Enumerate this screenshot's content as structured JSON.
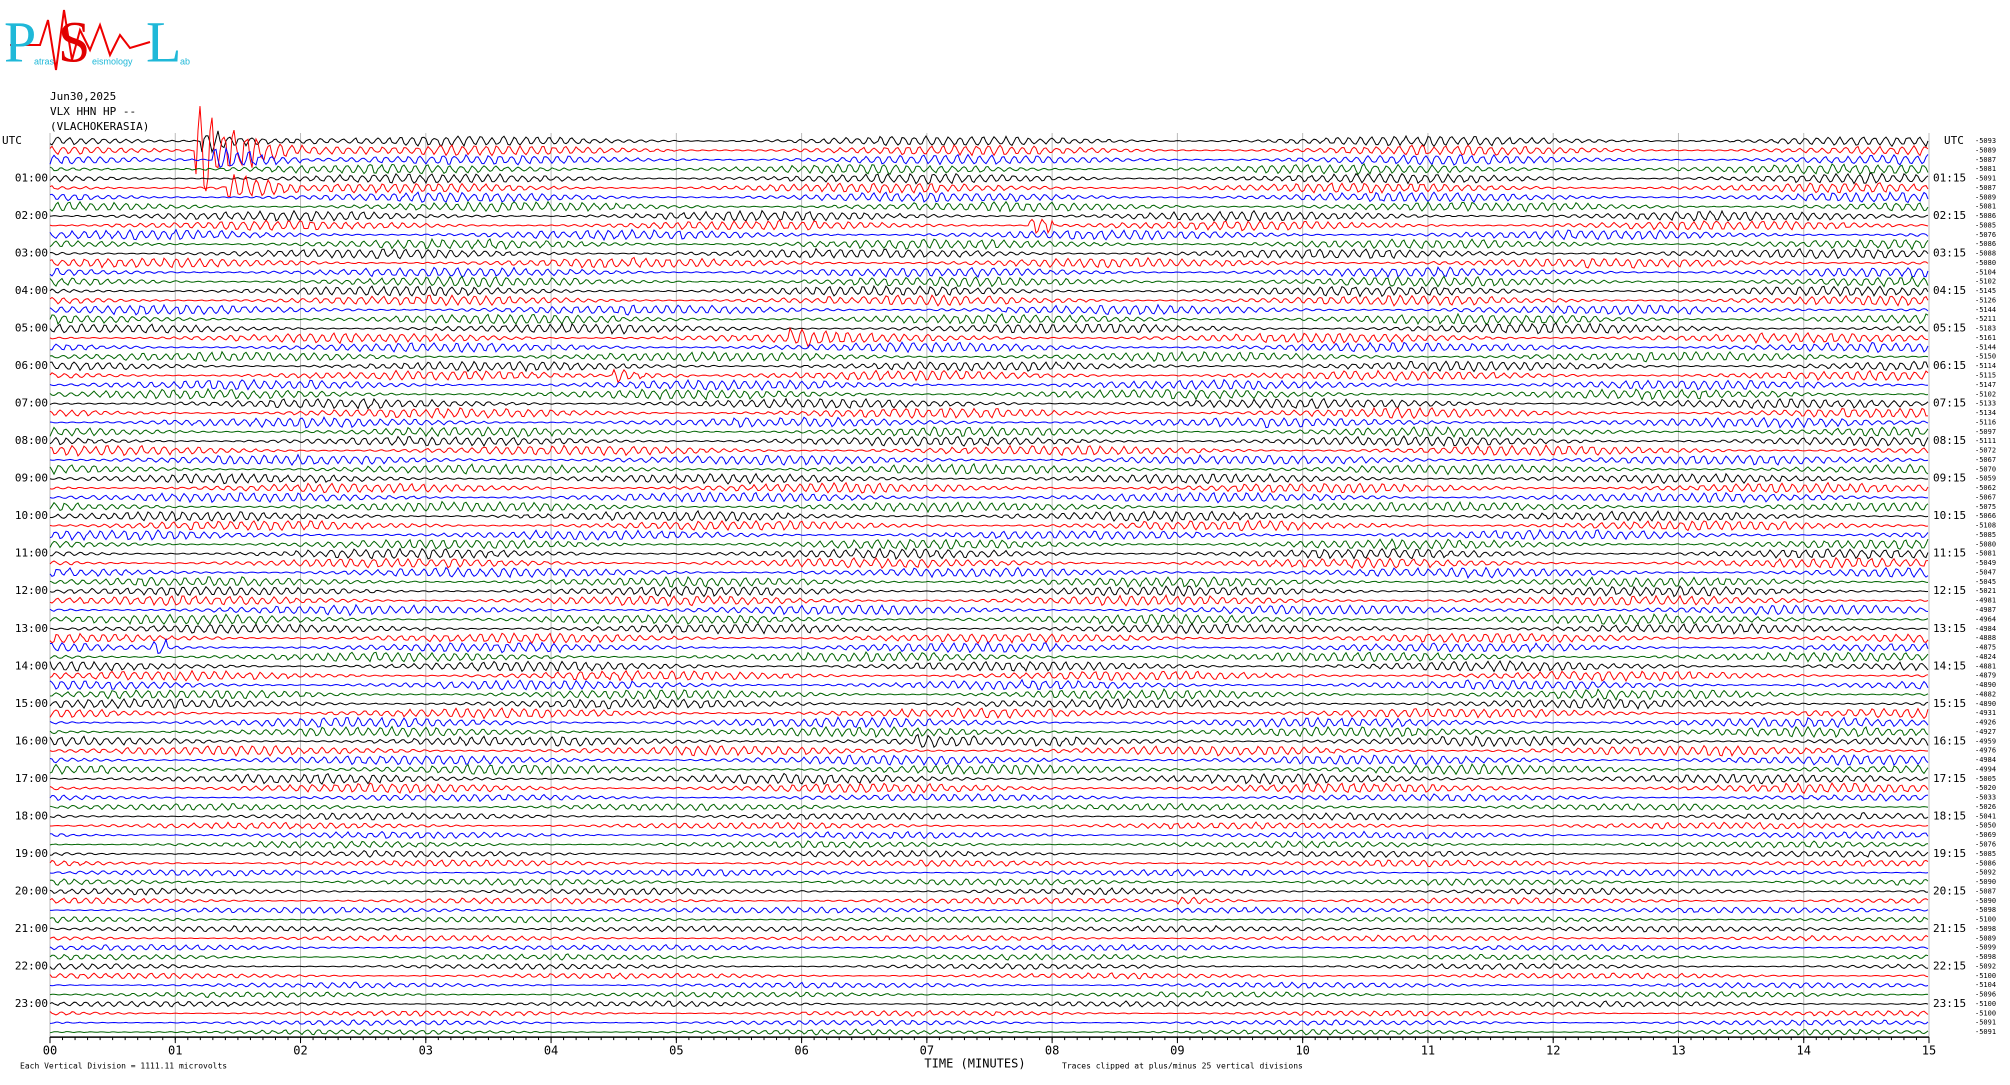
{
  "chart_data": {
    "type": "helicorder",
    "logo": {
      "letters": [
        "P",
        "S",
        "L"
      ],
      "words": [
        "atras",
        "eismology",
        "ab"
      ]
    },
    "title_lines": [
      "Jun30,2025",
      "VLX HHN HP --",
      "(VLACHOKERASIA)"
    ],
    "left_header": "UTC",
    "right_header": "UTC",
    "left_labels": [
      "01:00",
      "02:00",
      "03:00",
      "04:00",
      "05:00",
      "06:00",
      "07:00",
      "08:00",
      "09:00",
      "10:00",
      "11:00",
      "12:00",
      "13:00",
      "14:00",
      "15:00",
      "16:00",
      "17:00",
      "18:00",
      "19:00",
      "20:00",
      "21:00",
      "22:00",
      "23:00"
    ],
    "right_labels": [
      "01:15",
      "02:15",
      "03:15",
      "04:15",
      "05:15",
      "06:15",
      "07:15",
      "08:15",
      "09:15",
      "10:15",
      "11:15",
      "12:15",
      "13:15",
      "14:15",
      "15:15",
      "16:15",
      "17:15",
      "18:15",
      "19:15",
      "20:15",
      "21:15",
      "22:15",
      "23:15"
    ],
    "trace_offsets": [
      -5093,
      -5089,
      -5087,
      -5081,
      -5091,
      -5087,
      -5089,
      -5081,
      -5086,
      -5085,
      -5076,
      -5086,
      -5088,
      -5080,
      -5104,
      -5102,
      -5145,
      -5126,
      -5144,
      -5211,
      -5183,
      -5161,
      -5144,
      -5150,
      -5114,
      -5115,
      -5147,
      -5102,
      -5133,
      -5134,
      -5116,
      -5097,
      -5111,
      -5072,
      -5067,
      -5070,
      -5059,
      -5062,
      -5067,
      -5075,
      -5066,
      -5108,
      -5085,
      -5080,
      -5081,
      -5049,
      -5047,
      -5045,
      -5021,
      -4981,
      -4987,
      -4964,
      -4984,
      -4888,
      -4875,
      -4824,
      -4881,
      -4879,
      -4890,
      -4882,
      -4890,
      -4931,
      -4926,
      -4927,
      -4959,
      -4976,
      -4984,
      -4994,
      -5005,
      -5020,
      -5033,
      -5026,
      -5041,
      -5050,
      -5069,
      -5076,
      -5085,
      -5086,
      -5092,
      -5090,
      -5087,
      -5090,
      -5098,
      -5100,
      -5098,
      -5089,
      -5099,
      -5098,
      -5092,
      -5100,
      -5104,
      -5096,
      -5100,
      -5100,
      -5091,
      -5091
    ],
    "trace_colors": [
      "#000000",
      "#ff0000",
      "#0000ff",
      "#006400"
    ],
    "xlim": [
      0,
      15
    ],
    "xticks": [
      {
        "value": 0,
        "label": "00"
      },
      {
        "value": 1,
        "label": "01"
      },
      {
        "value": 2,
        "label": "02"
      },
      {
        "value": 3,
        "label": "03"
      },
      {
        "value": 4,
        "label": "04"
      },
      {
        "value": 5,
        "label": "05"
      },
      {
        "value": 6,
        "label": "06"
      },
      {
        "value": 7,
        "label": "07"
      },
      {
        "value": 8,
        "label": "08"
      },
      {
        "value": 9,
        "label": "09"
      },
      {
        "value": 10,
        "label": "10"
      },
      {
        "value": 11,
        "label": "11"
      },
      {
        "value": 12,
        "label": "12"
      },
      {
        "value": 13,
        "label": "13"
      },
      {
        "value": 14,
        "label": "14"
      },
      {
        "value": 15,
        "label": "15"
      }
    ],
    "x_label": "TIME (MINUTES)",
    "scale_note": "Each Vertical Division = 1111.11 microvolts",
    "clip_note": "Traces clipped at plus/minus 25 vertical divisions",
    "grid": true
  }
}
